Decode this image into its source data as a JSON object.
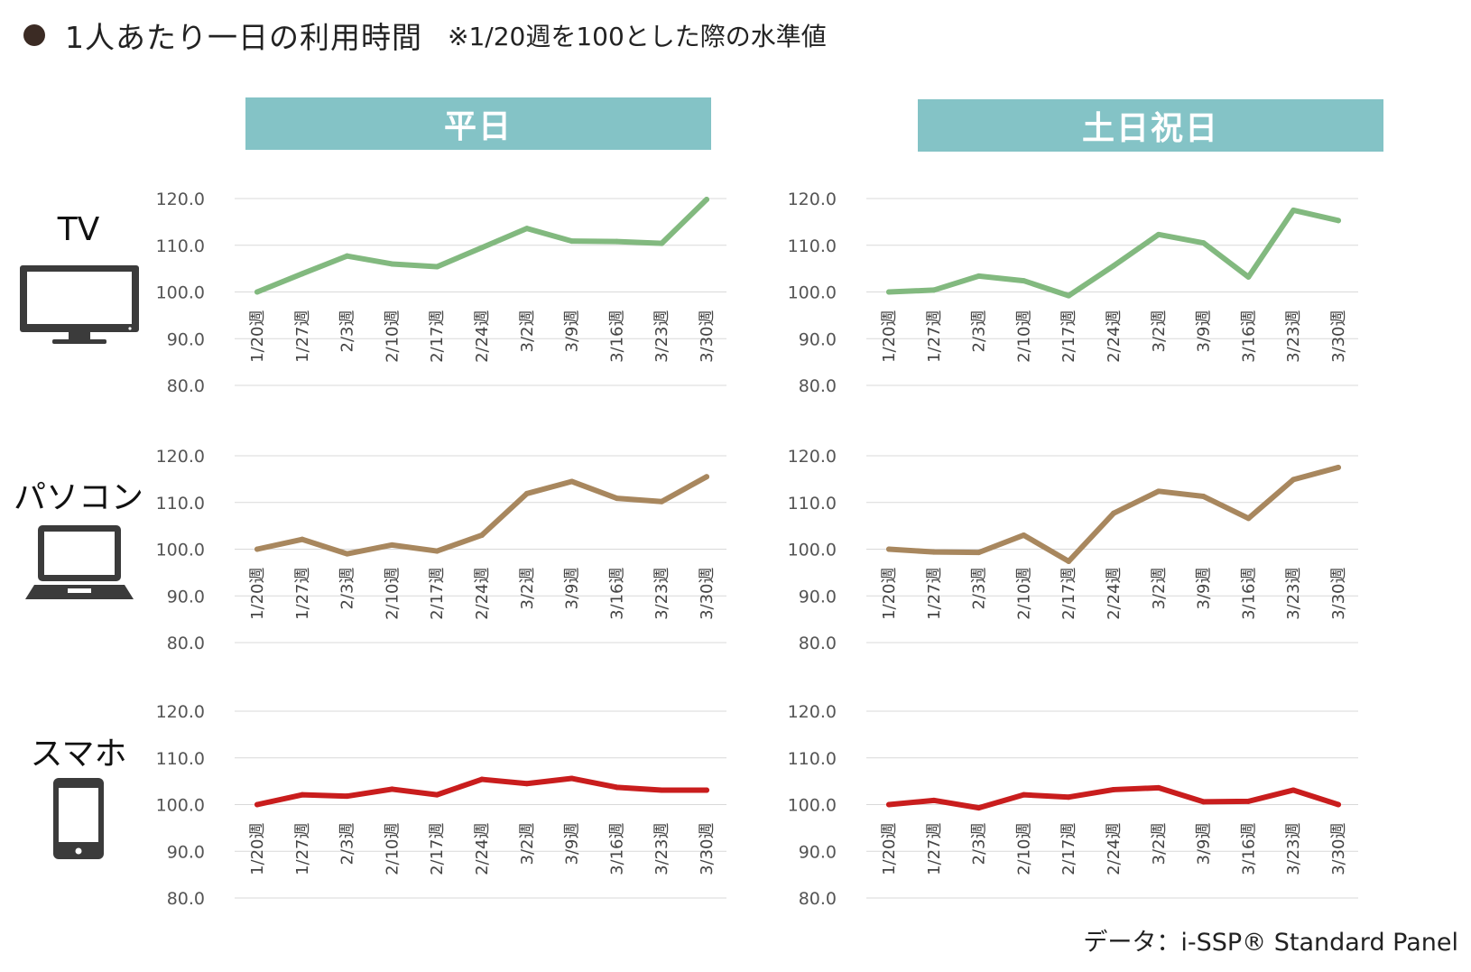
{
  "title": {
    "main": "1人あたり一日の利用時間",
    "note": "※1/20週を100とした際の水準値"
  },
  "groups": [
    {
      "label": "平日"
    },
    {
      "label": "土日祝日"
    }
  ],
  "devices": [
    {
      "label": "TV",
      "icon": "tv-icon"
    },
    {
      "label": "パソコン",
      "icon": "laptop-icon"
    },
    {
      "label": "スマホ",
      "icon": "smartphone-icon"
    }
  ],
  "source": "データ：i-SSP® Standard Panel",
  "colors": {
    "tv": "#82b97f",
    "pc": "#a8875e",
    "sp": "#c91d1d",
    "header": "#84c3c6",
    "grid": "#d9d9d9"
  },
  "chart_data": [
    {
      "type": "line",
      "group": "平日",
      "device": "TV",
      "categories": [
        "1/20週",
        "1/27週",
        "2/3週",
        "2/10週",
        "2/17週",
        "2/24週",
        "3/2週",
        "3/9週",
        "3/16週",
        "3/23週",
        "3/30週"
      ],
      "series": [
        {
          "values": [
            100.0,
            103.9,
            107.7,
            106.0,
            105.4,
            109.5,
            113.6,
            110.9,
            110.8,
            110.4,
            119.8
          ],
          "color": "#82b97f"
        }
      ],
      "yticks": [
        "80.0",
        "90.0",
        "100.0",
        "110.0",
        "120.0"
      ],
      "ylim": [
        80,
        120
      ],
      "grid": true
    },
    {
      "type": "line",
      "group": "土日祝日",
      "device": "TV",
      "categories": [
        "1/20週",
        "1/27週",
        "2/3週",
        "2/10週",
        "2/17週",
        "2/24週",
        "3/2週",
        "3/9週",
        "3/16週",
        "3/23週",
        "3/30週"
      ],
      "series": [
        {
          "values": [
            100.0,
            100.4,
            103.4,
            102.4,
            99.2,
            105.6,
            112.3,
            110.5,
            103.2,
            117.5,
            115.3
          ],
          "color": "#82b97f"
        }
      ],
      "yticks": [
        "80.0",
        "90.0",
        "100.0",
        "110.0",
        "120.0"
      ],
      "ylim": [
        80,
        120
      ],
      "grid": true
    },
    {
      "type": "line",
      "group": "平日",
      "device": "パソコン",
      "categories": [
        "1/20週",
        "1/27週",
        "2/3週",
        "2/10週",
        "2/17週",
        "2/24週",
        "3/2週",
        "3/9週",
        "3/16週",
        "3/23週",
        "3/30週"
      ],
      "series": [
        {
          "values": [
            100.0,
            102.1,
            99.0,
            100.9,
            99.6,
            103.0,
            111.9,
            114.5,
            110.9,
            110.2,
            115.5
          ],
          "color": "#a8875e"
        }
      ],
      "yticks": [
        "80.0",
        "90.0",
        "100.0",
        "110.0",
        "120.0"
      ],
      "ylim": [
        80,
        120
      ],
      "grid": true
    },
    {
      "type": "line",
      "group": "土日祝日",
      "device": "パソコン",
      "categories": [
        "1/20週",
        "1/27週",
        "2/3週",
        "2/10週",
        "2/17週",
        "2/24週",
        "3/2週",
        "3/9週",
        "3/16週",
        "3/23週",
        "3/30週"
      ],
      "series": [
        {
          "values": [
            100.0,
            99.4,
            99.3,
            103.0,
            97.4,
            107.7,
            112.4,
            111.3,
            106.6,
            114.9,
            117.5
          ],
          "color": "#a8875e"
        }
      ],
      "yticks": [
        "80.0",
        "90.0",
        "100.0",
        "110.0",
        "120.0"
      ],
      "ylim": [
        80,
        120
      ],
      "grid": true
    },
    {
      "type": "line",
      "group": "平日",
      "device": "スマホ",
      "categories": [
        "1/20週",
        "1/27週",
        "2/3週",
        "2/10週",
        "2/17週",
        "2/24週",
        "3/2週",
        "3/9週",
        "3/16週",
        "3/23週",
        "3/30週"
      ],
      "series": [
        {
          "values": [
            100.0,
            102.1,
            101.8,
            103.3,
            102.1,
            105.4,
            104.5,
            105.6,
            103.7,
            103.1,
            103.1
          ],
          "color": "#c91d1d"
        }
      ],
      "yticks": [
        "80.0",
        "90.0",
        "100.0",
        "110.0",
        "120.0"
      ],
      "ylim": [
        80,
        120
      ],
      "grid": true
    },
    {
      "type": "line",
      "group": "土日祝日",
      "device": "スマホ",
      "categories": [
        "1/20週",
        "1/27週",
        "2/3週",
        "2/10週",
        "2/17週",
        "2/24週",
        "3/2週",
        "3/9週",
        "3/16週",
        "3/23週",
        "3/30週"
      ],
      "series": [
        {
          "values": [
            100.0,
            100.9,
            99.3,
            102.1,
            101.6,
            103.2,
            103.6,
            100.6,
            100.7,
            103.1,
            100.0
          ],
          "color": "#c91d1d"
        }
      ],
      "yticks": [
        "80.0",
        "90.0",
        "100.0",
        "110.0",
        "120.0"
      ],
      "ylim": [
        80,
        120
      ],
      "grid": true
    }
  ]
}
